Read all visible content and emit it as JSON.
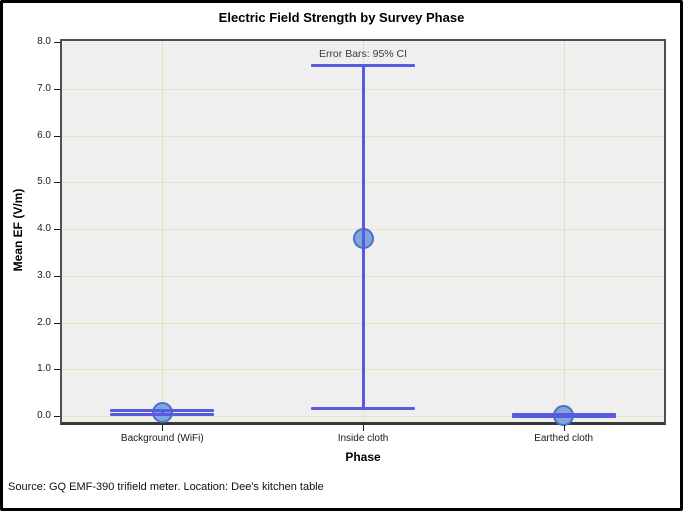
{
  "chart_data": {
    "type": "errorbar",
    "title": "Electric Field Strength by Survey Phase",
    "xlabel": "Phase",
    "ylabel": "Mean EF (V/m)",
    "annotation": "Error Bars: 95% CI",
    "ci_level": "95% CI",
    "categories": [
      "Background (WiFi)",
      "Inside cloth",
      "Earthed cloth"
    ],
    "series": [
      {
        "name": "Mean EF",
        "means": [
          0.08,
          3.8,
          0.02
        ],
        "ci_low": [
          0.03,
          0.15,
          0.0
        ],
        "ci_high": [
          0.12,
          7.5,
          0.04
        ]
      }
    ],
    "ylim": [
      0,
      8
    ],
    "yticks": [
      0,
      1,
      2,
      3,
      4,
      5,
      6,
      7,
      8
    ],
    "ytick_labels": [
      "0.0",
      "1.0",
      "2.0",
      "3.0",
      "4.0",
      "5.0",
      "6.0",
      "7.0",
      "8.0"
    ],
    "grid": "horizontal value gridlines and vertical category gridlines",
    "legend": "none"
  },
  "source_note": "Source: GQ EMF-390 trifield meter. Location: Dee's kitchen table",
  "colors": {
    "error_bar": "#5a5ae0",
    "marker_fill": "#7ea6d8",
    "marker_stroke": "#4b6ed2",
    "gridline": "#e6e2bb",
    "plot_bg": "#efefef",
    "plot_frame": "#4f4f4f",
    "canvas_border": "#000000",
    "text": "#1a1a1a"
  }
}
